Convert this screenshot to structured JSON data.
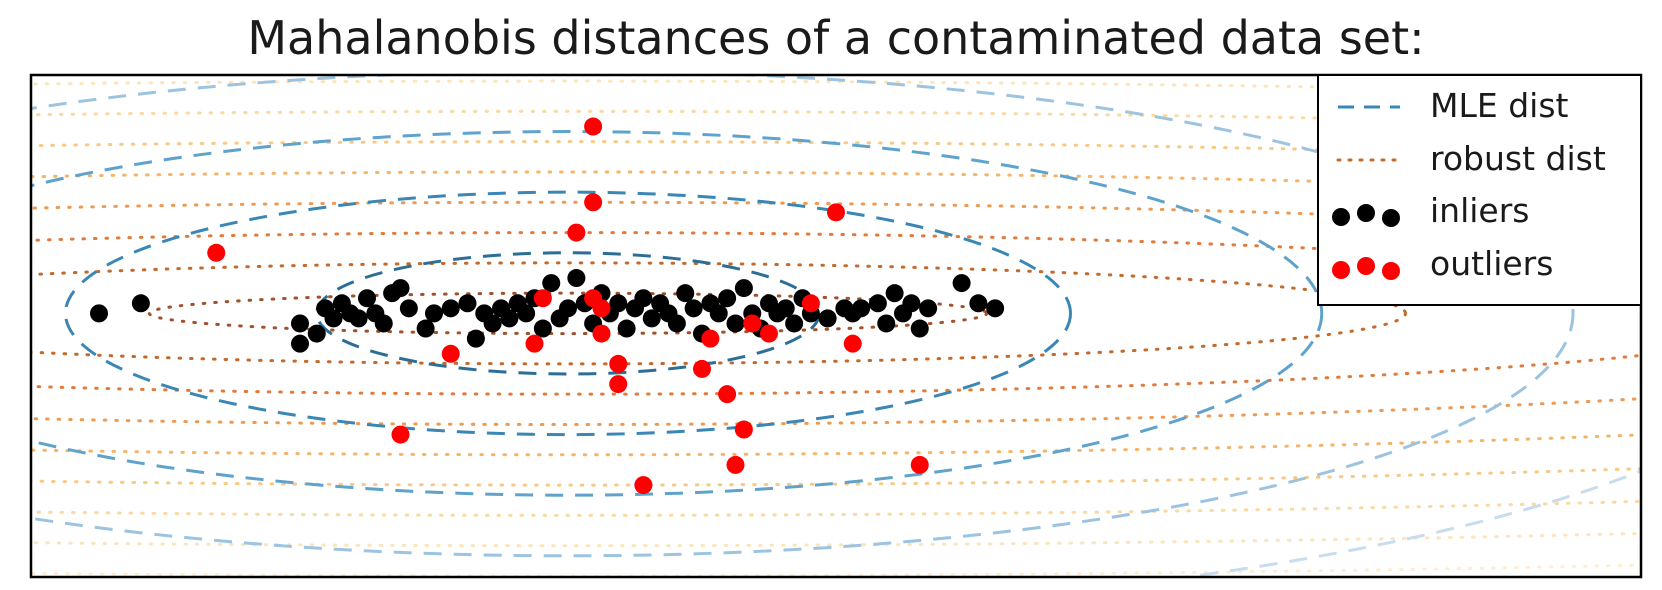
{
  "chart_data": {
    "type": "scatter",
    "title": "Mahalanobis distances of a contaminated data set:",
    "xlabel": "",
    "ylabel": "",
    "xlim": [
      -6.0,
      13.2
    ],
    "ylim": [
      -5.2,
      4.7
    ],
    "grid": false,
    "legend_position": "top-right",
    "contours": {
      "center": [
        0.4,
        0.0
      ],
      "mle": {
        "label": "MLE dist",
        "style": "dashed",
        "x_semi_axes": [
          3.0,
          6.0,
          9.0,
          12.0,
          15.0
        ],
        "y_semi_axes": [
          1.2,
          2.4,
          3.6,
          4.8,
          6.0
        ],
        "colors": [
          "#2c6e95",
          "#3a87b5",
          "#5ea3cc",
          "#9cc4e0",
          "#c8dced"
        ]
      },
      "robust": {
        "label": "robust dist",
        "style": "dotted",
        "x_semi_axes": [
          5.0,
          10.0,
          15.0,
          20.0,
          25.0,
          30.0,
          35.0,
          40.0,
          45.0
        ],
        "y_semi_axes": [
          0.4,
          1.0,
          1.6,
          2.2,
          2.8,
          3.4,
          4.0,
          4.6,
          5.2
        ],
        "colors": [
          "#a0522d",
          "#c36a2d",
          "#e07b3c",
          "#ee9a52",
          "#f5b468",
          "#f8c985",
          "#fad9a3",
          "#fce5bd",
          "#fdeed3"
        ]
      }
    },
    "series": [
      {
        "name": "inliers",
        "color": "#000000",
        "points": [
          [
            -5.2,
            0.0
          ],
          [
            -4.7,
            0.2
          ],
          [
            -2.8,
            -0.6
          ],
          [
            -2.8,
            -0.2
          ],
          [
            -2.6,
            -0.4
          ],
          [
            -2.5,
            0.1
          ],
          [
            -2.4,
            -0.1
          ],
          [
            -2.3,
            0.2
          ],
          [
            -2.2,
            0.0
          ],
          [
            -2.1,
            -0.1
          ],
          [
            -2.0,
            0.3
          ],
          [
            -1.9,
            0.0
          ],
          [
            -1.8,
            -0.2
          ],
          [
            -1.7,
            0.4
          ],
          [
            -1.6,
            0.5
          ],
          [
            -1.5,
            0.1
          ],
          [
            -1.3,
            -0.3
          ],
          [
            -1.2,
            0.0
          ],
          [
            -1.0,
            0.1
          ],
          [
            -0.8,
            0.2
          ],
          [
            -0.7,
            -0.5
          ],
          [
            -0.6,
            0.0
          ],
          [
            -0.5,
            -0.2
          ],
          [
            -0.4,
            0.1
          ],
          [
            -0.3,
            -0.1
          ],
          [
            -0.2,
            0.2
          ],
          [
            -0.1,
            0.0
          ],
          [
            0.0,
            0.3
          ],
          [
            0.1,
            -0.3
          ],
          [
            0.2,
            0.6
          ],
          [
            0.3,
            -0.1
          ],
          [
            0.4,
            0.1
          ],
          [
            0.5,
            0.7
          ],
          [
            0.6,
            0.2
          ],
          [
            0.7,
            -0.2
          ],
          [
            0.8,
            0.4
          ],
          [
            0.9,
            0.0
          ],
          [
            1.0,
            0.2
          ],
          [
            1.1,
            -0.3
          ],
          [
            1.2,
            0.1
          ],
          [
            1.3,
            0.3
          ],
          [
            1.4,
            -0.1
          ],
          [
            1.5,
            0.2
          ],
          [
            1.6,
            0.0
          ],
          [
            1.7,
            -0.2
          ],
          [
            1.8,
            0.4
          ],
          [
            1.9,
            0.1
          ],
          [
            2.0,
            -0.4
          ],
          [
            2.1,
            0.2
          ],
          [
            2.2,
            0.0
          ],
          [
            2.3,
            0.3
          ],
          [
            2.4,
            -0.2
          ],
          [
            2.5,
            0.5
          ],
          [
            2.6,
            0.0
          ],
          [
            2.7,
            -0.3
          ],
          [
            2.8,
            0.2
          ],
          [
            2.9,
            0.0
          ],
          [
            3.0,
            0.1
          ],
          [
            3.1,
            -0.2
          ],
          [
            3.2,
            0.3
          ],
          [
            3.3,
            0.0
          ],
          [
            3.5,
            -0.1
          ],
          [
            3.7,
            0.1
          ],
          [
            3.8,
            0.0
          ],
          [
            3.9,
            0.1
          ],
          [
            4.1,
            0.2
          ],
          [
            4.2,
            -0.2
          ],
          [
            4.3,
            0.4
          ],
          [
            4.4,
            0.0
          ],
          [
            4.5,
            0.2
          ],
          [
            4.6,
            -0.3
          ],
          [
            4.7,
            0.1
          ],
          [
            5.1,
            0.6
          ],
          [
            5.3,
            0.2
          ],
          [
            5.5,
            0.1
          ]
        ]
      },
      {
        "name": "outliers",
        "color": "#ff0000",
        "points": [
          [
            0.7,
            3.7
          ],
          [
            0.7,
            2.2
          ],
          [
            0.5,
            1.6
          ],
          [
            3.6,
            2.0
          ],
          [
            -3.8,
            1.2
          ],
          [
            0.1,
            0.3
          ],
          [
            0.7,
            0.3
          ],
          [
            0.8,
            0.1
          ],
          [
            3.3,
            0.2
          ],
          [
            2.6,
            -0.2
          ],
          [
            2.1,
            -0.5
          ],
          [
            2.8,
            -0.4
          ],
          [
            -1.0,
            -0.8
          ],
          [
            0.0,
            -0.6
          ],
          [
            0.8,
            -0.4
          ],
          [
            1.0,
            -1.0
          ],
          [
            1.0,
            -1.4
          ],
          [
            2.0,
            -1.1
          ],
          [
            2.3,
            -1.6
          ],
          [
            -1.6,
            -2.4
          ],
          [
            2.5,
            -2.3
          ],
          [
            2.4,
            -3.0
          ],
          [
            1.3,
            -3.4
          ],
          [
            4.6,
            -3.0
          ],
          [
            3.8,
            -0.6
          ]
        ]
      }
    ]
  }
}
